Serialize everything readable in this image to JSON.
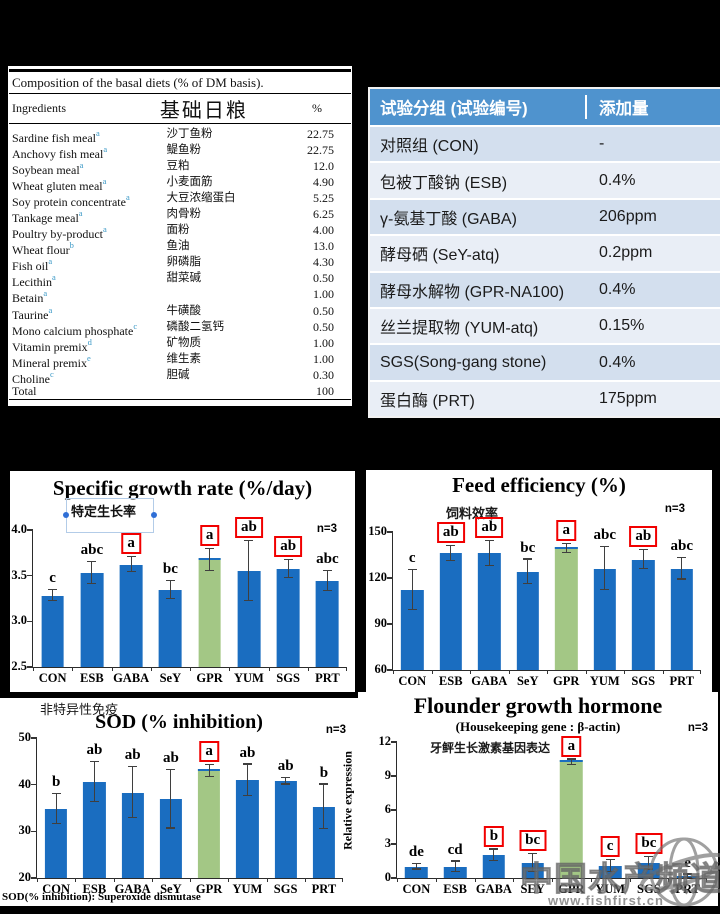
{
  "colors": {
    "bar_blue": "#1a6dc0",
    "bar_green": "#a3c785",
    "cap_blue": "#1a6dc0",
    "box_red": "#f10000",
    "table_header_blue": "#4f93ce",
    "row_dark": "#d3dfee",
    "row_light": "#e9eef6",
    "superscript_teal": "#3a98c6"
  },
  "left_table": {
    "title": "Composition of the basal diets (% of DM basis).",
    "header": {
      "en": "Ingredients",
      "cn": "基础日粮",
      "pct": "%"
    },
    "rows": [
      {
        "en": "Sardine fish meal",
        "sup": "a",
        "cn": "沙丁鱼粉",
        "pct": "22.75"
      },
      {
        "en": "Anchovy fish meal",
        "sup": "a",
        "cn": "鳀鱼粉",
        "pct": "22.75"
      },
      {
        "en": "Soybean meal",
        "sup": "a",
        "cn": "豆粕",
        "pct": "12.0"
      },
      {
        "en": "Wheat gluten meal",
        "sup": "a",
        "cn": "小麦面筋",
        "pct": "4.90"
      },
      {
        "en": "Soy protein concentrate",
        "sup": "a",
        "cn": "大豆浓缩蛋白",
        "pct": "5.25"
      },
      {
        "en": "Tankage meal",
        "sup": "a",
        "cn": "肉骨粉",
        "pct": "6.25"
      },
      {
        "en": "Poultry by-product",
        "sup": "a",
        "cn": "面粉",
        "pct": "4.00"
      },
      {
        "en": "Wheat flour",
        "sup": "b",
        "cn": "鱼油",
        "pct": "13.0"
      },
      {
        "en": "Fish oil",
        "sup": "a",
        "cn": "卵磷脂",
        "pct": "4.30"
      },
      {
        "en": "Lecithin",
        "sup": "a",
        "cn": "甜菜碱",
        "pct": "0.50"
      },
      {
        "en": "Betain",
        "sup": "a",
        "cn": "",
        "pct": "1.00"
      },
      {
        "en": "Taurine",
        "sup": "a",
        "cn": "牛磺酸",
        "pct": "0.50"
      },
      {
        "en": "Mono calcium phosphate",
        "sup": "c",
        "cn": "磷酸二氢钙",
        "pct": "0.50"
      },
      {
        "en": "Vitamin premix",
        "sup": "d",
        "cn": "矿物质",
        "pct": "1.00"
      },
      {
        "en": "Mineral premix",
        "sup": "e",
        "cn": "维生素",
        "pct": "1.00"
      },
      {
        "en": "Choline",
        "sup": "c",
        "cn": "胆碱",
        "pct": "0.30"
      },
      {
        "en": "Total",
        "sup": "",
        "cn": "",
        "pct": "100"
      }
    ]
  },
  "group_table": {
    "header": [
      "试验分组 (试验编号)",
      "添加量"
    ],
    "rows": [
      [
        "对照组 (CON)",
        "-"
      ],
      [
        "包被丁酸钠 (ESB)",
        "0.4%"
      ],
      [
        "γ-氨基丁酸 (GABA)",
        "206ppm"
      ],
      [
        "酵母硒 (SeY-atq)",
        "0.2ppm"
      ],
      [
        "酵母水解物 (GPR-NA100)",
        "0.4%"
      ],
      [
        "丝兰提取物 (YUM-atq)",
        "0.15%"
      ],
      [
        "SGS(Song-gang stone)",
        "0.4%"
      ],
      [
        "蛋白酶 (PRT)",
        "175ppm"
      ]
    ]
  },
  "chart_data": [
    {
      "type": "bar",
      "title": "Specific growth rate (%/day)",
      "annotation": "特定生长率",
      "n_label": "n=3",
      "categories": [
        "CON",
        "ESB",
        "GABA",
        "SeY",
        "GPR",
        "YUM",
        "SGS",
        "PRT"
      ],
      "values": [
        3.28,
        3.53,
        3.62,
        3.34,
        3.67,
        3.55,
        3.57,
        3.44
      ],
      "errors": [
        0.06,
        0.12,
        0.08,
        0.1,
        0.12,
        0.33,
        0.1,
        0.11
      ],
      "sig_letters": [
        "c",
        "abc",
        "a",
        "bc",
        "a",
        "ab",
        "ab",
        "abc"
      ],
      "sig_boxed": [
        false,
        false,
        true,
        false,
        true,
        true,
        true,
        false
      ],
      "highlight_index": 4,
      "ylim": [
        2.5,
        4.0
      ],
      "yticks": [
        "2.5",
        "3.0",
        "3.5",
        "4.0"
      ],
      "grid": false,
      "xlabel": "",
      "ylabel": ""
    },
    {
      "type": "bar",
      "title": "Feed efficiency (%)",
      "annotation": "饲料效率",
      "n_label": "n=3",
      "categories": [
        "CON",
        "ESB",
        "GABA",
        "SeY",
        "GPR",
        "YUM",
        "SGS",
        "PRT"
      ],
      "values": [
        112,
        136,
        136,
        124,
        139,
        126,
        132,
        126
      ],
      "errors": [
        13,
        5,
        8,
        8,
        3,
        14,
        6,
        7
      ],
      "sig_letters": [
        "c",
        "ab",
        "ab",
        "bc",
        "a",
        "abc",
        "ab",
        "abc"
      ],
      "sig_boxed": [
        false,
        true,
        true,
        false,
        true,
        false,
        true,
        false
      ],
      "highlight_index": 4,
      "ylim": [
        60,
        150
      ],
      "yticks": [
        "60",
        "90",
        "120",
        "150"
      ],
      "grid": false,
      "xlabel": "",
      "ylabel": ""
    },
    {
      "type": "bar",
      "title": "SOD (% inhibition)",
      "pre_title": "非特异性免疫",
      "footnote": "SOD(% inhibition): Superoxide dismutase",
      "n_label": "n=3",
      "categories": [
        "CON",
        "ESB",
        "GABA",
        "SeY",
        "GPR",
        "YUM",
        "SGS",
        "PRT"
      ],
      "values": [
        34.7,
        40.6,
        38.3,
        36.9,
        42.9,
        40.9,
        40.7,
        35.2
      ],
      "errors": [
        3.2,
        4.3,
        5.4,
        6.3,
        1.3,
        3.4,
        0.7,
        4.8
      ],
      "sig_letters": [
        "b",
        "ab",
        "ab",
        "ab",
        "a",
        "ab",
        "ab",
        "b"
      ],
      "sig_boxed": [
        false,
        false,
        false,
        false,
        true,
        false,
        false,
        false
      ],
      "highlight_index": 4,
      "ylim": [
        20,
        50
      ],
      "yticks": [
        "20",
        "30",
        "40",
        "50"
      ],
      "grid": false,
      "xlabel": "",
      "ylabel": ""
    },
    {
      "type": "bar",
      "title": "Flounder growth hormone",
      "subtitle": "(Housekeeping gene : β-actin)",
      "annotation": "牙鲆生长激素基因表达",
      "n_label": "n=3",
      "categories": [
        "CON",
        "ESB",
        "GABA",
        "SEY",
        "GPR",
        "YUM",
        "SGS",
        "PRT"
      ],
      "values": [
        1.0,
        1.0,
        2.0,
        1.3,
        10.2,
        1.05,
        1.3,
        0.15
      ],
      "errors": [
        0.25,
        0.45,
        0.5,
        0.8,
        0.25,
        0.5,
        0.55,
        0.15
      ],
      "sig_letters": [
        "de",
        "cd",
        "b",
        "bc",
        "a",
        "c",
        "bc",
        "e"
      ],
      "sig_boxed": [
        false,
        false,
        true,
        true,
        true,
        true,
        true,
        false
      ],
      "highlight_index": 4,
      "ylim": [
        0,
        12
      ],
      "yticks": [
        "0",
        "3",
        "6",
        "9",
        "12"
      ],
      "grid": false,
      "xlabel": "",
      "ylabel": "Relative expression"
    }
  ],
  "watermark": {
    "text": "中国水产频道",
    "url": "www.fishfirst.cn"
  }
}
